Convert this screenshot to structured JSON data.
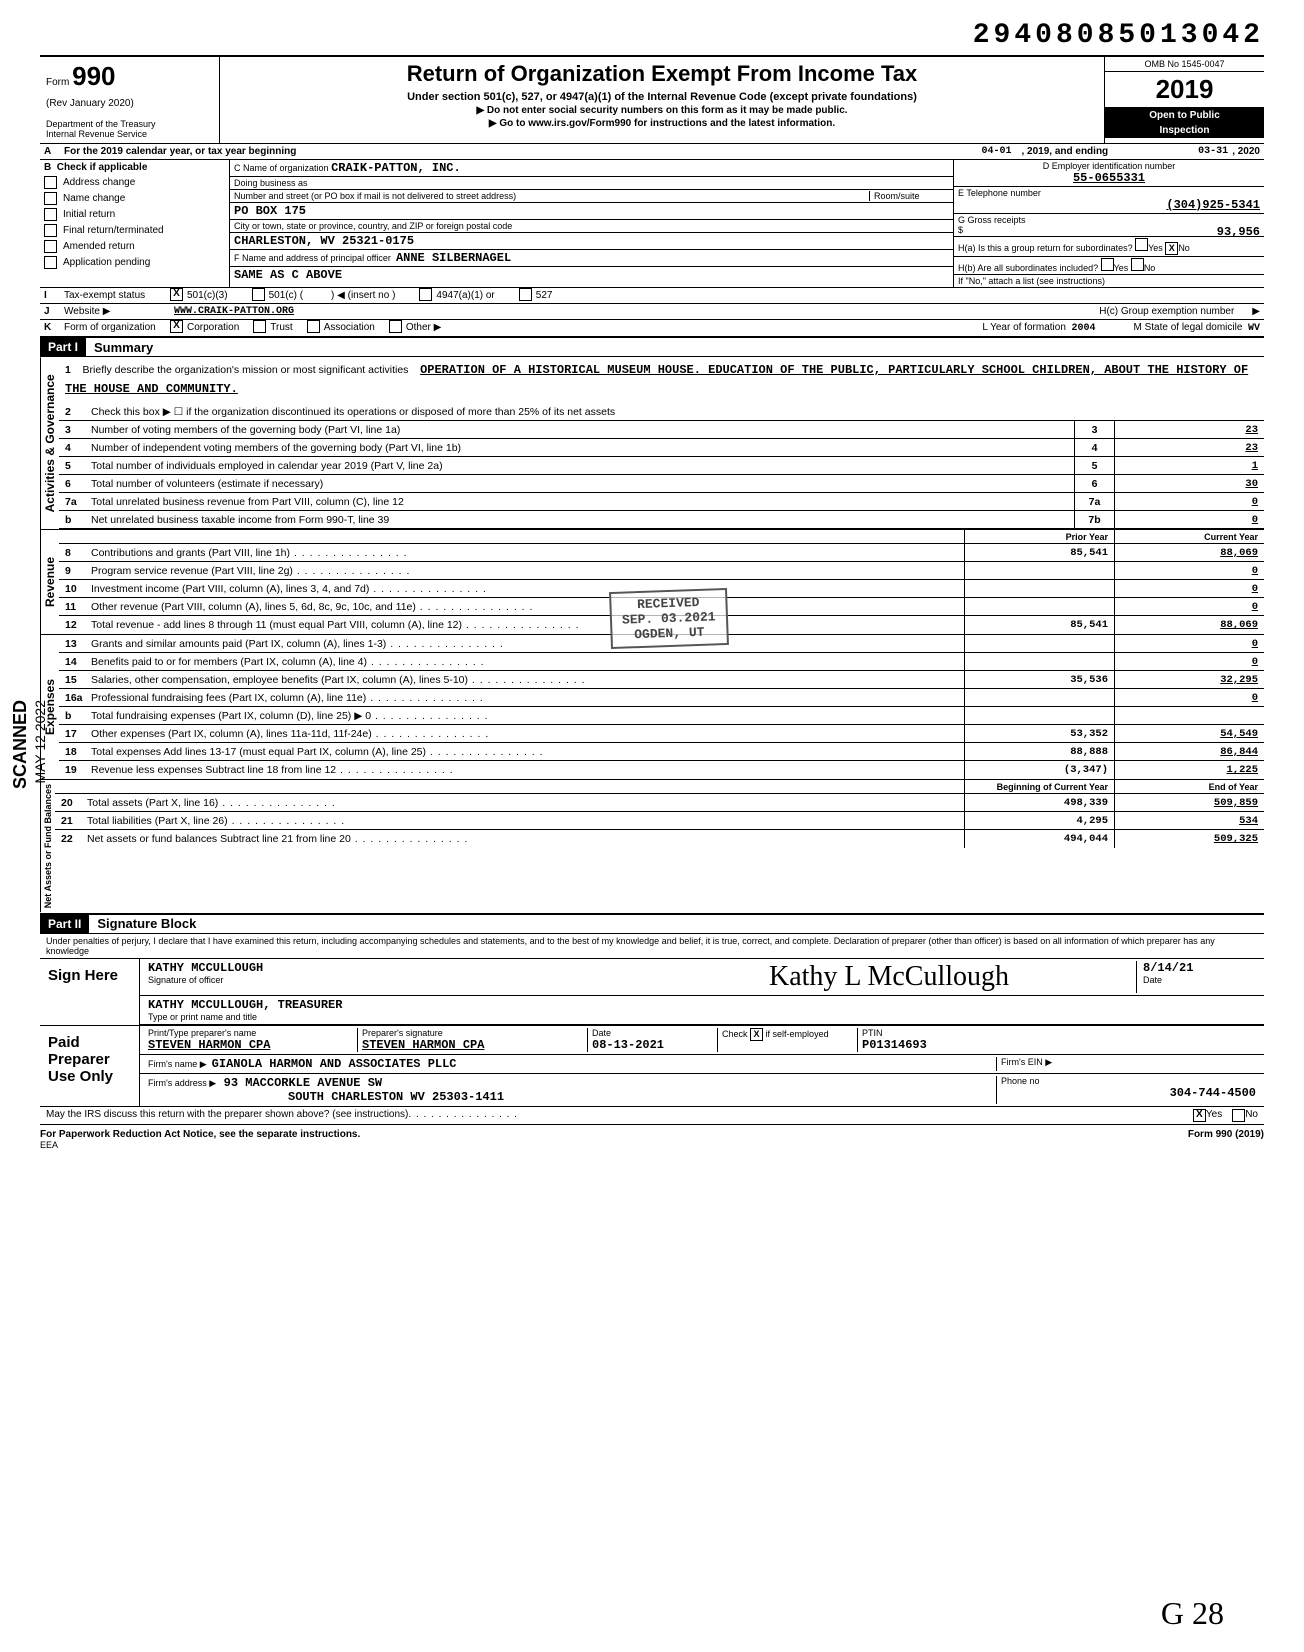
{
  "stamp_number": "29408085013042",
  "form": {
    "number": "990",
    "rev": "(Rev January 2020)",
    "dept": "Department of the Treasury",
    "irs": "Internal Revenue Service",
    "title": "Return of Organization Exempt From Income Tax",
    "sub": "Under section 501(c), 527, or 4947(a)(1) of the Internal Revenue Code (except private foundations)",
    "note1": "▶ Do not enter social security numbers on this form as it may be made public.",
    "note2": "▶ Go to www.irs.gov/Form990 for instructions and the latest information.",
    "omb": "OMB No 1545-0047",
    "year": "2019",
    "public1": "Open to Public",
    "public2": "Inspection"
  },
  "line_a": {
    "prefix": "For the 2019 calendar year, or tax year beginning",
    "begin": "04-01",
    "mid": ", 2019, and ending",
    "end": "03-31",
    "suffix": ", 2020"
  },
  "b": {
    "header": "Check if applicable",
    "items": [
      "Address change",
      "Name change",
      "Initial return",
      "Final return/terminated",
      "Amended return",
      "Application pending"
    ]
  },
  "c": {
    "lbl_name": "C  Name of organization",
    "name": "CRAIK-PATTON, INC.",
    "lbl_dba": "Doing business as",
    "lbl_street": "Number and street (or PO  box if mail is not delivered to street address)",
    "room": "Room/suite",
    "street": "PO BOX 175",
    "lbl_city": "City or town, state or province, country, and ZIP or foreign postal code",
    "city": "CHARLESTON, WV 25321-0175",
    "lbl_f": "F  Name and address of principal officer",
    "f_name": "ANNE SILBERNAGEL",
    "f_addr": "SAME AS C ABOVE"
  },
  "d": {
    "lbl": "D  Employer identification number",
    "val": "55-0655331"
  },
  "e": {
    "lbl": "E  Telephone number",
    "val": "(304)925-5341"
  },
  "g": {
    "lbl": "G  Gross receipts",
    "val": "93,956"
  },
  "h": {
    "a": "H(a) Is this a group return for subordinates?",
    "b": "H(b) Are all subordinates included?",
    "c": "H(c)   Group exemption number",
    "note": "If \"No,\" attach a list (see instructions)",
    "yes": "Yes",
    "no": "No",
    "no_x": "X"
  },
  "i": {
    "lbl": "Tax-exempt status",
    "x": "X",
    "opts": [
      "501(c)(3)",
      "501(c) (",
      "(insert no )",
      "4947(a)(1) or",
      "527"
    ]
  },
  "j": {
    "lbl": "Website  ▶",
    "val": "WWW.CRAIK-PATTON.ORG"
  },
  "k": {
    "lbl": "Form of organization",
    "x": "X",
    "opts": [
      "Corporation",
      "Trust",
      "Association",
      "Other ▶"
    ],
    "l_lbl": "L  Year of formation",
    "l_val": "2004",
    "m_lbl": "M  State of legal domicile",
    "m_val": "WV"
  },
  "part1": {
    "hdr": "Part I",
    "title": "Summary",
    "mission_lbl": "Briefly describe the organization's mission or most significant activities",
    "mission": "OPERATION OF A HISTORICAL MUSEUM HOUSE. EDUCATION OF THE PUBLIC, PARTICULARLY SCHOOL CHILDREN, ABOUT THE HISTORY OF THE HOUSE AND COMMUNITY."
  },
  "sidetabs": {
    "gov": "Activities & Governance",
    "rev": "Revenue",
    "exp": "Expenses",
    "net": "Net Assets or Fund Balances"
  },
  "gov_lines": [
    {
      "n": "2",
      "t": "Check this box ▶ ☐ if the organization discontinued its operations or disposed of more than 25% of its net assets",
      "c": "",
      "v": ""
    },
    {
      "n": "3",
      "t": "Number of voting members of the governing body (Part VI, line 1a)",
      "c": "3",
      "v": "23"
    },
    {
      "n": "4",
      "t": "Number of independent voting members of the governing body (Part VI, line 1b)",
      "c": "4",
      "v": "23"
    },
    {
      "n": "5",
      "t": "Total number of individuals employed in calendar year 2019 (Part V, line 2a)",
      "c": "5",
      "v": "1"
    },
    {
      "n": "6",
      "t": "Total number of volunteers (estimate if necessary)",
      "c": "6",
      "v": "30"
    },
    {
      "n": "7a",
      "t": "Total unrelated business revenue from Part VIII, column (C), line 12",
      "c": "7a",
      "v": "0"
    },
    {
      "n": "b",
      "t": "Net unrelated business taxable income from Form 990-T, line 39",
      "c": "7b",
      "v": "0"
    }
  ],
  "yr_hdr": {
    "py": "Prior Year",
    "cy": "Current Year"
  },
  "rev_lines": [
    {
      "n": "8",
      "t": "Contributions and grants (Part VIII, line 1h)",
      "py": "85,541",
      "cy": "88,069"
    },
    {
      "n": "9",
      "t": "Program service revenue (Part VIII, line 2g)",
      "py": "",
      "cy": "0"
    },
    {
      "n": "10",
      "t": "Investment income (Part VIII, column (A), lines 3, 4, and 7d)",
      "py": "",
      "cy": "0"
    },
    {
      "n": "11",
      "t": "Other revenue (Part VIII, column (A), lines 5, 6d, 8c, 9c, 10c, and 11e)",
      "py": "",
      "cy": "0"
    },
    {
      "n": "12",
      "t": "Total revenue - add lines 8 through 11 (must equal Part VIII, column (A), line 12)",
      "py": "85,541",
      "cy": "88,069"
    }
  ],
  "exp_lines": [
    {
      "n": "13",
      "t": "Grants and similar amounts paid (Part IX, column (A), lines 1-3)",
      "py": "",
      "cy": "0"
    },
    {
      "n": "14",
      "t": "Benefits paid to or for members (Part IX, column (A), line 4)",
      "py": "",
      "cy": "0"
    },
    {
      "n": "15",
      "t": "Salaries, other compensation, employee benefits (Part IX, column (A), lines 5-10)",
      "py": "35,536",
      "cy": "32,295"
    },
    {
      "n": "16a",
      "t": "Professional fundraising fees (Part IX, column (A), line 11e)",
      "py": "",
      "cy": "0"
    },
    {
      "n": "b",
      "t": "Total fundraising expenses (Part IX, column (D), line 25)   ▶            0",
      "py": "",
      "cy": ""
    },
    {
      "n": "17",
      "t": "Other expenses (Part IX, column (A), lines 11a-11d, 11f-24e)",
      "py": "53,352",
      "cy": "54,549"
    },
    {
      "n": "18",
      "t": "Total expenses  Add lines 13-17 (must equal Part IX, column (A), line 25)",
      "py": "88,888",
      "cy": "86,844"
    },
    {
      "n": "19",
      "t": "Revenue less expenses  Subtract line 18 from line 12",
      "py": "(3,347)",
      "cy": "1,225"
    }
  ],
  "net_hdr": {
    "py": "Beginning of Current Year",
    "cy": "End of Year"
  },
  "net_lines": [
    {
      "n": "20",
      "t": "Total assets (Part X, line 16)",
      "py": "498,339",
      "cy": "509,859"
    },
    {
      "n": "21",
      "t": "Total liabilities (Part X, line 26)",
      "py": "4,295",
      "cy": "534"
    },
    {
      "n": "22",
      "t": "Net assets or fund balances  Subtract line 21 from line 20",
      "py": "494,044",
      "cy": "509,325"
    }
  ],
  "part2": {
    "hdr": "Part II",
    "title": "Signature Block"
  },
  "perjury": "Under penalties of perjury, I declare that I have examined this return, including accompanying schedules and statements, and to the best of my knowledge and belief, it is true, correct, and complete. Declaration of preparer (other than officer) is based on all information of which preparer has any knowledge",
  "sign": {
    "here": "Sign Here",
    "officer_sig_lbl": "Signature of officer",
    "officer_name": "KATHY MCCULLOUGH",
    "date_lbl": "Date",
    "date_val": "8/14/21",
    "typed_lbl": "Type or print name and title",
    "typed": "KATHY MCCULLOUGH, TREASURER",
    "cursive": "Kathy L McCullough"
  },
  "paid": {
    "here": "Paid Preparer Use Only",
    "name_lbl": "Print/Type preparer's name",
    "name": "STEVEN HARMON CPA",
    "sig_lbl": "Preparer's signature",
    "sig": "STEVEN HARMON CPA",
    "date_lbl": "Date",
    "date": "08-13-2021",
    "check_lbl": "Check",
    "check_x": "X",
    "check_if": "if self-employed",
    "ptin_lbl": "PTIN",
    "ptin": "P01314693",
    "firm_lbl": "Firm's name   ▶",
    "firm": "GIANOLA HARMON AND ASSOCIATES PLLC",
    "ein_lbl": "Firm's EIN  ▶",
    "addr_lbl": "Firm's address  ▶",
    "addr1": "93 MACCORKLE AVENUE SW",
    "addr2": "SOUTH CHARLESTON WV 25303-1411",
    "phone_lbl": "Phone no",
    "phone": "304-744-4500"
  },
  "discuss": {
    "q": "May the IRS discuss this return with the preparer shown above? (see instructions)",
    "yes": "Yes",
    "no": "No",
    "x": "X"
  },
  "footer": {
    "left": "For Paperwork Reduction Act Notice, see the separate instructions.",
    "mid": "EEA",
    "right": "Form 990 (2019)"
  },
  "scanned": "SCANNED",
  "scanned_date": "MAY 12 2022",
  "stamp_received": "RECEIVED",
  "stamp_date": "SEP. 03.2021",
  "stamp_loc": "OGDEN, UT",
  "initials": "G 28"
}
